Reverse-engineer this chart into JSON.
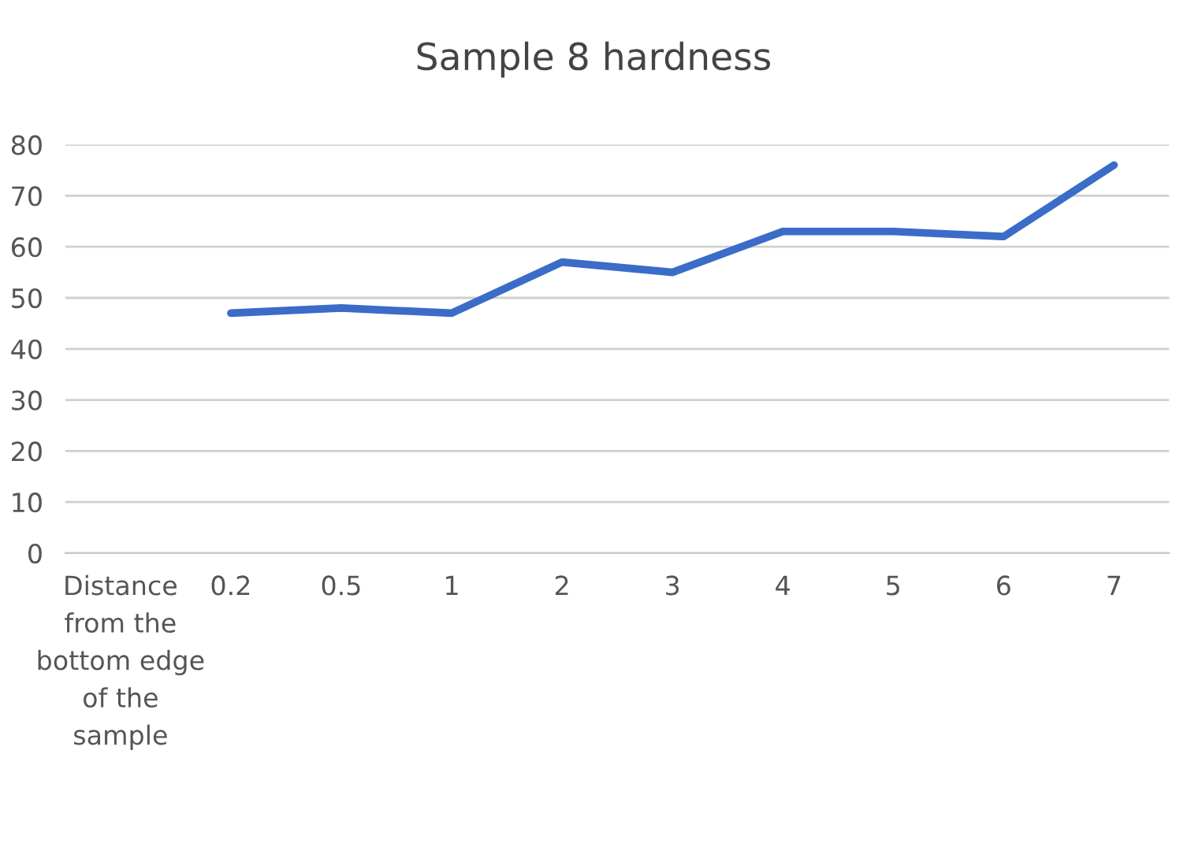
{
  "chart_data": {
    "type": "line",
    "title": "Sample 8 hardness",
    "categories": [
      "Distance from the bottom edge of the sample",
      "0.2",
      "0.5",
      "1",
      "2",
      "3",
      "4",
      "5",
      "6",
      "7"
    ],
    "series": [
      {
        "color": "#3a6cc8",
        "values": [
          null,
          47,
          48,
          47,
          57,
          55,
          63,
          63,
          62,
          76
        ]
      }
    ],
    "ylim": [
      0,
      80
    ],
    "yticks": [
      0,
      10,
      20,
      30,
      40,
      50,
      60,
      70,
      80
    ],
    "grid": "y",
    "legend": false,
    "marker": "none",
    "line_style": "solid"
  }
}
